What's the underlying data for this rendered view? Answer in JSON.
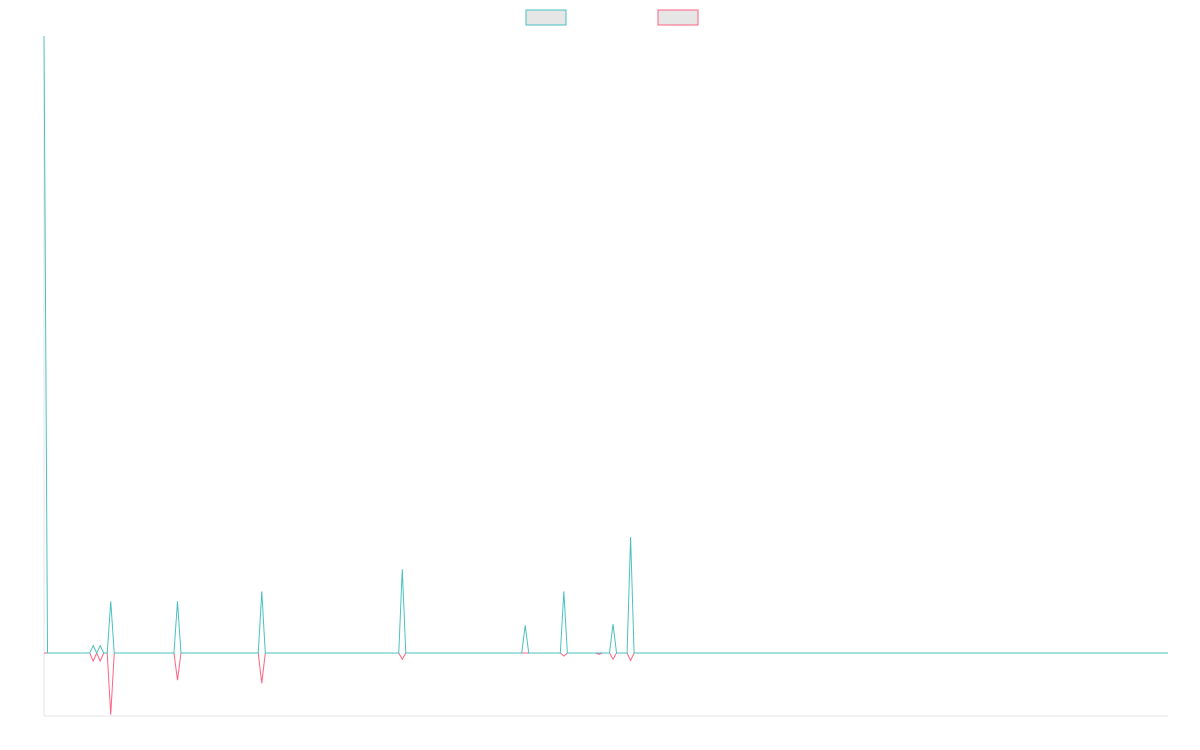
{
  "chart_data": {
    "type": "line",
    "x": [
      0,
      1,
      13,
      14,
      15,
      16,
      17,
      18,
      19,
      20,
      37,
      38,
      39,
      61,
      62,
      63,
      101,
      102,
      103,
      136,
      137,
      138,
      147,
      148,
      149,
      157,
      158,
      159,
      161,
      162,
      163,
      166,
      167,
      168,
      320
    ],
    "xlim": [
      0,
      320
    ],
    "ylim": [
      -10.2,
      100
    ],
    "series": [
      {
        "color": "#4bc0c0",
        "values": [
          100,
          0,
          0,
          1.2,
          0,
          1.2,
          0,
          0,
          8.4,
          0,
          0,
          8.4,
          0,
          0,
          10,
          0,
          0,
          13.6,
          0,
          0,
          4.5,
          0,
          0,
          10,
          0,
          0,
          0,
          0,
          0,
          4.7,
          0,
          0,
          18.8,
          0,
          0
        ]
      },
      {
        "color": "#ff6384",
        "values": [
          0,
          0,
          0,
          -1.3,
          0,
          -1.3,
          0,
          0,
          -10,
          0,
          0,
          -4.4,
          0,
          0,
          -4.9,
          0,
          0,
          -1,
          0,
          0,
          0,
          0,
          0,
          -0.5,
          0,
          0,
          -0.2,
          0,
          0,
          -1,
          0,
          0,
          -1.2,
          0,
          0
        ]
      }
    ],
    "legend": "top",
    "grid": false
  }
}
